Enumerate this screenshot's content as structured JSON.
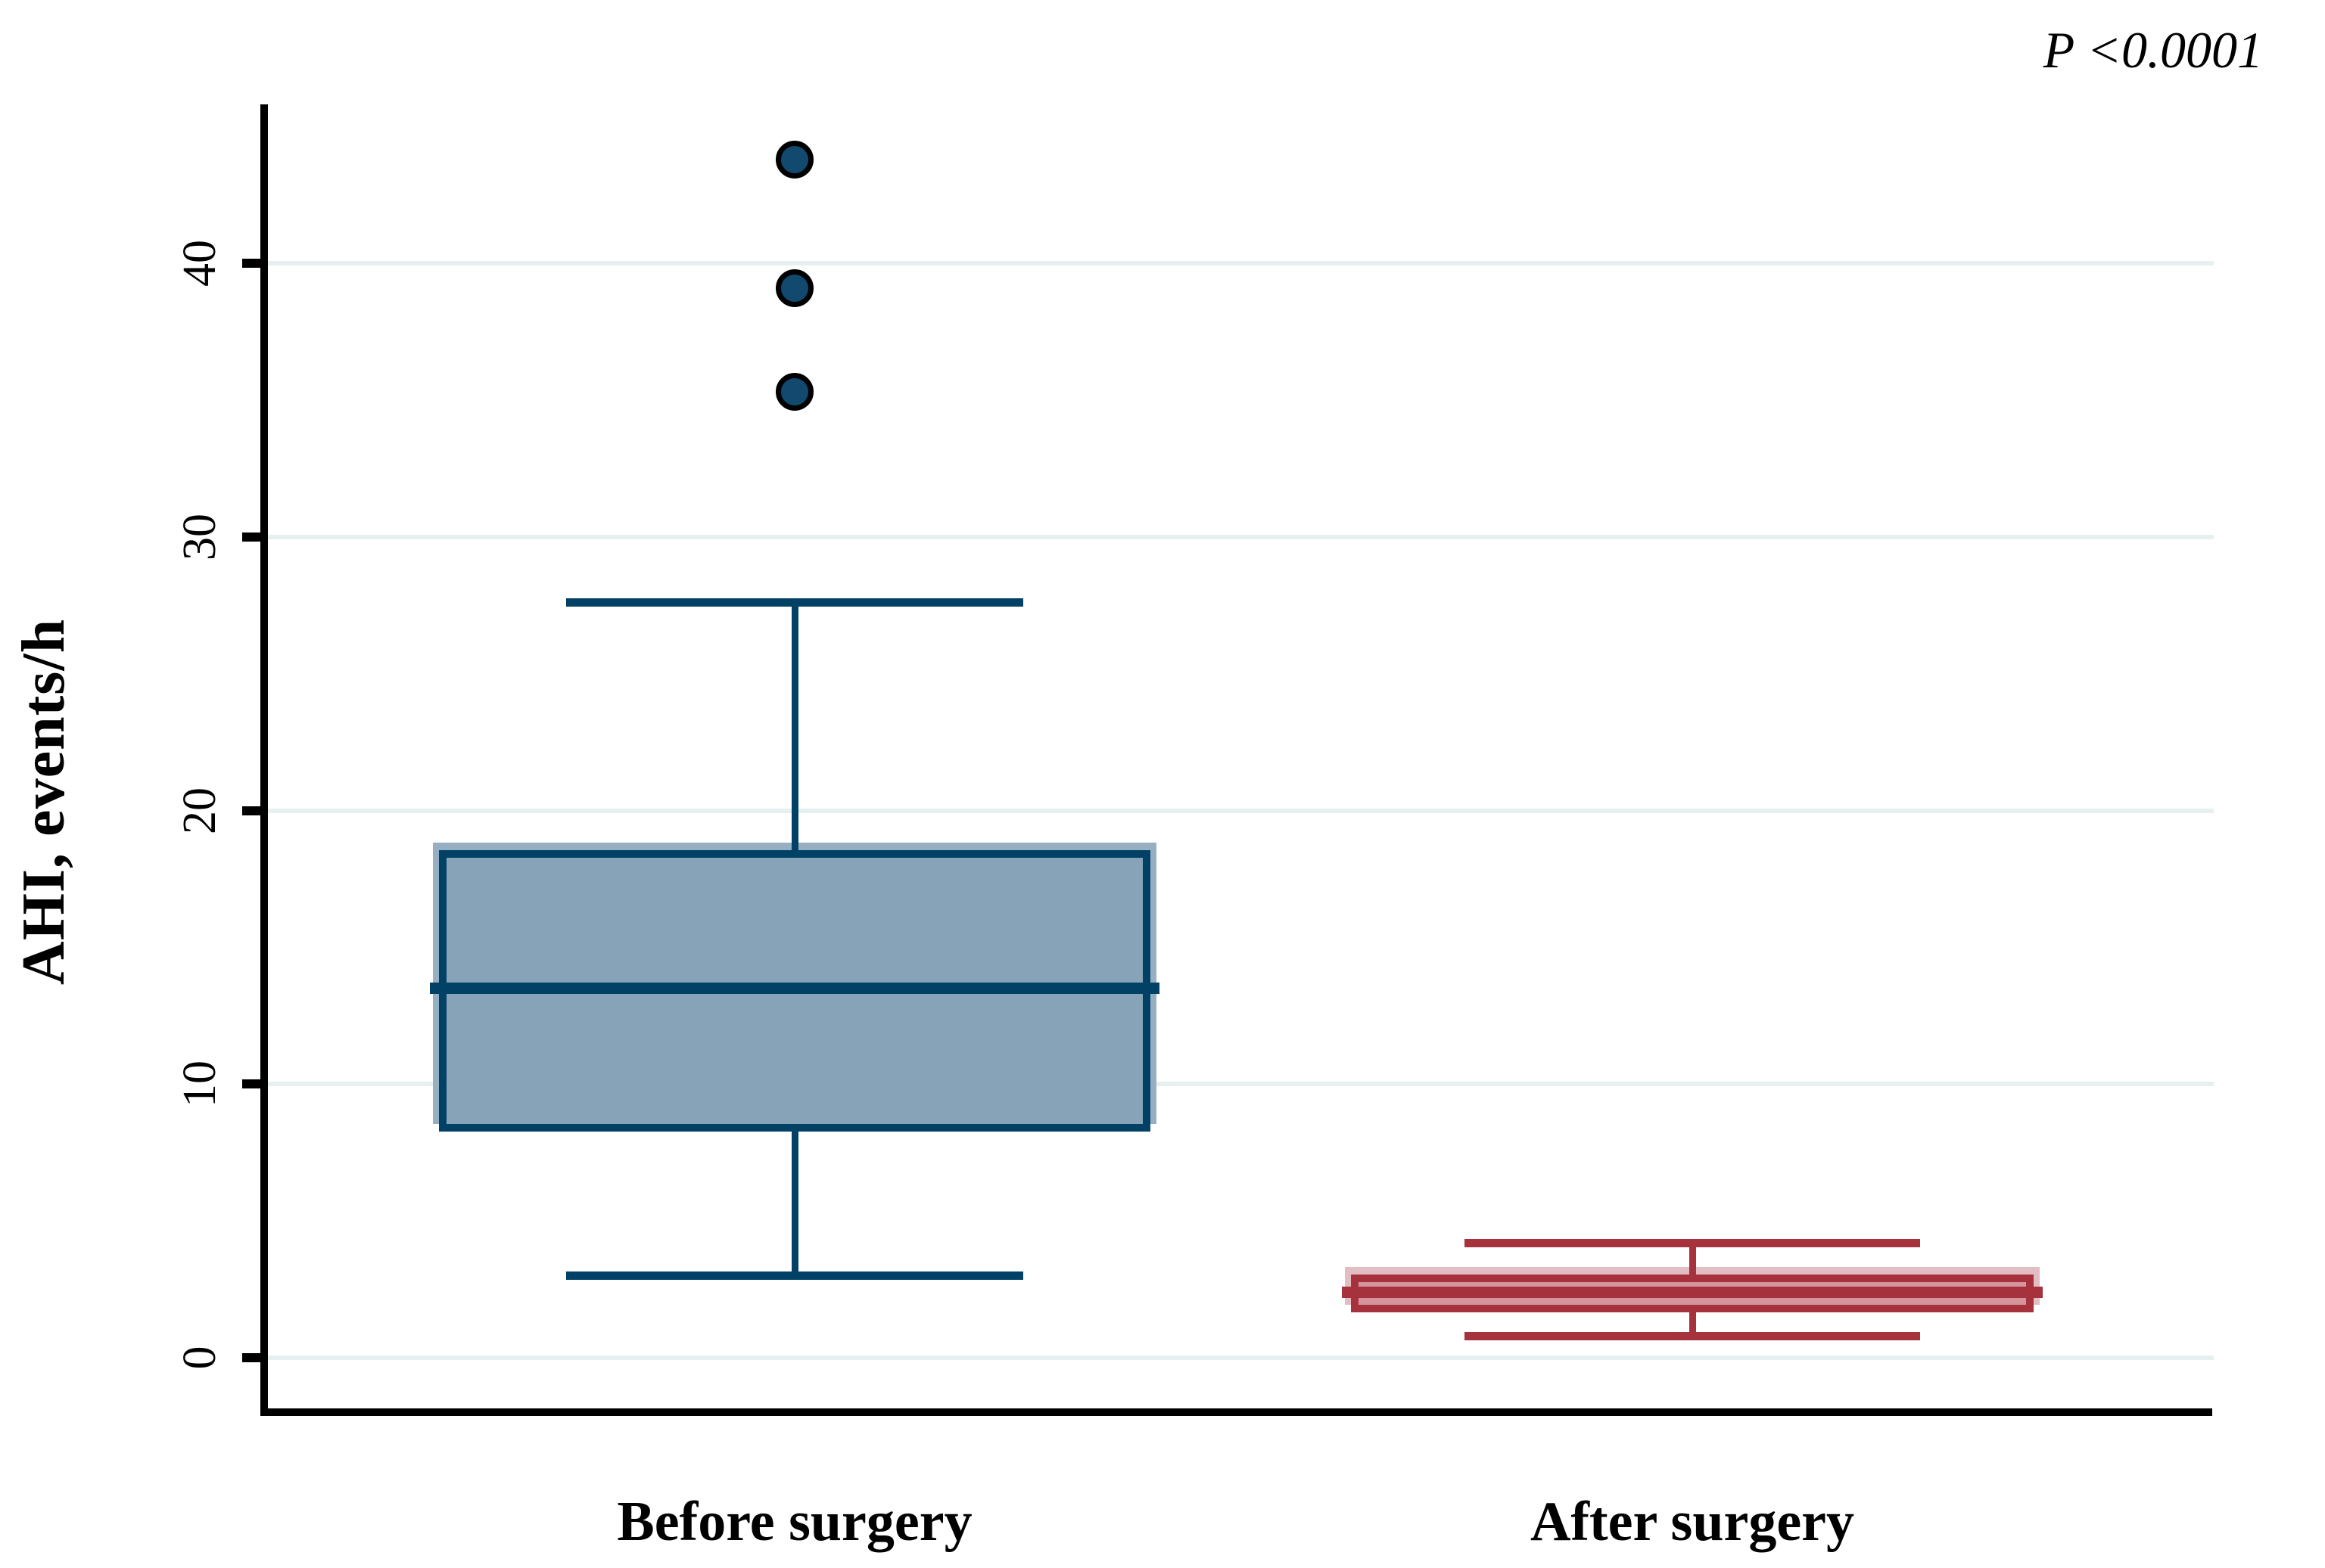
{
  "chart_data": {
    "type": "box",
    "title": "",
    "ylabel": "AHI, events/h",
    "xlabel": "",
    "p_annotation": "P <0.0001",
    "categories": [
      "Before surgery",
      "After surgery"
    ],
    "yticks": [
      "0",
      "10",
      "20",
      "30",
      "40"
    ],
    "ytick_values": [
      0,
      10,
      20,
      30,
      40
    ],
    "ylim": [
      -2,
      46
    ],
    "grid": "horizontal-light",
    "legend": "none",
    "series": [
      {
        "name": "Before surgery",
        "whisker_low": 3.0,
        "q1": 8.4,
        "median": 13.5,
        "q3": 18.4,
        "whisker_high": 27.6,
        "outliers": [
          35.3,
          39.1,
          43.8
        ],
        "colors": {
          "line": "#004165",
          "fill": "#87a3b8",
          "shadow": "#96afc3",
          "outlier_fill": "#114a6e",
          "outlier_ring": "#000000"
        }
      },
      {
        "name": "After surgery",
        "whisker_low": 0.8,
        "q1": 1.8,
        "median": 2.4,
        "q3": 2.9,
        "whisker_high": 4.2,
        "outliers": [],
        "colors": {
          "line": "#a5323d",
          "fill": "#d6949d",
          "shadow": "#e2bdc4",
          "outlier_fill": "#a5323d",
          "outlier_ring": "#000000"
        }
      }
    ],
    "colors": {
      "grid": "#e7f0f1",
      "axis": "#000000"
    }
  }
}
